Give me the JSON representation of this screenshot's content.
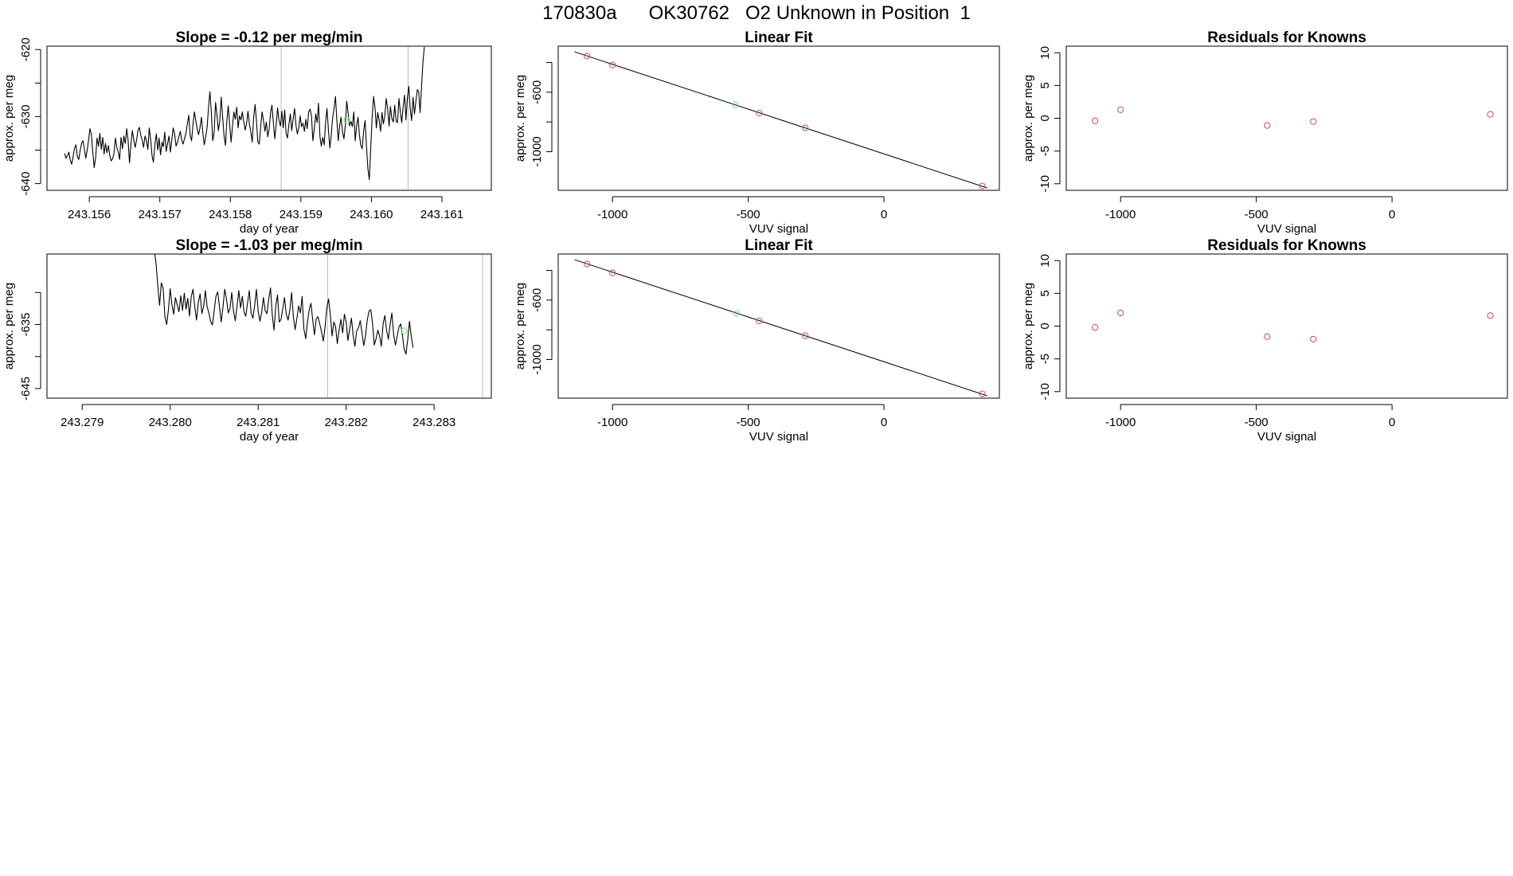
{
  "page_title": "170830a      OK30762   O2 Unknown in Position  1",
  "colors": {
    "line": "#000000",
    "known_point": "#cd5c5c",
    "unknown_point": "#7fe07f",
    "vline": "#bebebe",
    "frame": "#000000"
  },
  "chart_data": [
    {
      "id": "ts1",
      "type": "line",
      "title": "Slope =  -0.12  per meg/min",
      "xlabel": "day of year",
      "ylabel": "approx. per meg",
      "xlim": [
        243.1554,
        243.1617
      ],
      "ylim": [
        -641,
        -619.5
      ],
      "xticks": [
        243.156,
        243.157,
        243.158,
        243.159,
        243.16,
        243.161
      ],
      "xtick_labels": [
        "243.156",
        "243.157",
        "243.158",
        "243.159",
        "243.160",
        "243.161"
      ],
      "yticks": [
        -640,
        -635,
        -630,
        -625,
        -620
      ],
      "ytick_labels": [
        "-640",
        "",
        "-630",
        "",
        "-620"
      ],
      "vlines": [
        243.15872,
        243.16052
      ],
      "series": [
        {
          "name": "signal",
          "x_start": 243.15565,
          "x_step": 2e-05,
          "values": [
            -635.5,
            -636.2,
            -635.8,
            -635.3,
            -636.5,
            -637.1,
            -636.0,
            -634.8,
            -634.2,
            -635.9,
            -636.4,
            -635.1,
            -634.0,
            -633.6,
            -634.8,
            -636.2,
            -635.0,
            -633.4,
            -631.8,
            -632.7,
            -635.4,
            -637.6,
            -636.1,
            -633.2,
            -634.4,
            -632.5,
            -634.9,
            -633.1,
            -635.6,
            -634.0,
            -635.4,
            -634.3,
            -635.8,
            -636.6,
            -636.3,
            -635.5,
            -633.2,
            -634.6,
            -635.3,
            -636.4,
            -633.1,
            -634.8,
            -632.9,
            -634.0,
            -631.8,
            -633.6,
            -636.9,
            -634.2,
            -632.1,
            -633.4,
            -634.6,
            -633.5,
            -632.0,
            -631.6,
            -632.8,
            -633.5,
            -634.6,
            -632.9,
            -633.6,
            -634.9,
            -631.7,
            -633.4,
            -635.9,
            -636.8,
            -634.1,
            -632.6,
            -635.0,
            -633.2,
            -635.7,
            -633.8,
            -634.5,
            -632.3,
            -635.2,
            -634.0,
            -632.9,
            -635.3,
            -633.4,
            -631.7,
            -632.6,
            -634.4,
            -633.8,
            -633.0,
            -632.2,
            -633.5,
            -634.1,
            -633.3,
            -632.5,
            -631.1,
            -629.8,
            -632.8,
            -633.6,
            -631.2,
            -629.3,
            -630.6,
            -631.9,
            -632.7,
            -631.6,
            -630.1,
            -632.4,
            -634.2,
            -633.0,
            -631.6,
            -628.7,
            -626.3,
            -629.4,
            -633.6,
            -632.4,
            -627.9,
            -629.8,
            -632.1,
            -630.7,
            -627.1,
            -629.9,
            -632.8,
            -634.3,
            -630.6,
            -628.4,
            -631.2,
            -633.8,
            -631.5,
            -629.3,
            -630.4,
            -628.6,
            -631.7,
            -629.9,
            -630.5,
            -629.3,
            -630.8,
            -632.0,
            -631.0,
            -629.2,
            -631.1,
            -632.3,
            -633.8,
            -630.2,
            -628.2,
            -630.7,
            -633.8,
            -634.1,
            -631.4,
            -629.3,
            -630.6,
            -632.2,
            -630.8,
            -633.0,
            -631.9,
            -629.4,
            -628.3,
            -630.9,
            -633.3,
            -631.1,
            -628.7,
            -630.6,
            -631.4,
            -629.2,
            -631.7,
            -629.0,
            -632.5,
            -633.2,
            -631.2,
            -629.6,
            -632.1,
            -630.4,
            -628.8,
            -631.3,
            -632.6,
            -631.7,
            -629.9,
            -631.5,
            -631.0,
            -632.2,
            -630.4,
            -631.8,
            -629.3,
            -628.9,
            -629.8,
            -633.6,
            -631.8,
            -629.6,
            -630.9,
            -628.0,
            -633.0,
            -634.4,
            -633.1,
            -634.2,
            -630.8,
            -628.8,
            -631.9,
            -634.7,
            -632.9,
            -630.2,
            -628.8,
            -627.0,
            -630.6,
            -633.6,
            -631.3,
            -630.1,
            -632.3,
            -633.3,
            -631.3,
            -627.7,
            -629.5,
            -631.4,
            -630.7,
            -631.5,
            -629.3,
            -633.6,
            -631.4,
            -630.1,
            -632.8,
            -634.3,
            -634.8,
            -632.1,
            -630.6,
            -634.4,
            -637.8,
            -639.4,
            -634.9,
            -630.2,
            -627.0,
            -628.6,
            -631.7,
            -629.4,
            -630.6,
            -632.2,
            -629.4,
            -631.1,
            -629.8,
            -627.3,
            -628.8,
            -631.4,
            -628.5,
            -630.3,
            -630.8,
            -628.3,
            -630.7,
            -630.9,
            -627.3,
            -629.2,
            -630.9,
            -628.5,
            -626.8,
            -630.5,
            -627.2,
            -625.5,
            -628.8,
            -630.6,
            -627.1,
            -629.6,
            -627.8,
            -626.0,
            -626.3,
            -629.4,
            -625.7,
            -621.9,
            -619.6
          ]
        }
      ],
      "highlight": {
        "x": 243.15965,
        "y": -630.5
      }
    },
    {
      "id": "fit1",
      "type": "scatter",
      "title": "Linear Fit",
      "xlabel": "VUV signal",
      "ylabel": "approx. per meg",
      "xlim": [
        -1200,
        425
      ],
      "ylim": [
        -1260,
        -290
      ],
      "xticks": [
        -1000,
        -500,
        0
      ],
      "xtick_labels": [
        "-1000",
        "-500",
        "0"
      ],
      "yticks": [
        -1000,
        -800,
        -600,
        -400
      ],
      "ytick_labels": [
        "-1000",
        "",
        "-600",
        ""
      ],
      "known_points": [
        {
          "x": -1094,
          "y": -357
        },
        {
          "x": -1000,
          "y": -417
        },
        {
          "x": -460,
          "y": -740
        },
        {
          "x": -290,
          "y": -840
        },
        {
          "x": 362,
          "y": -1231
        }
      ],
      "unknown_point": {
        "x": -548,
        "y": -685
      },
      "fit_line": {
        "slope": -0.6026,
        "intercept": -1014.8,
        "x_from": -1140,
        "x_to": 380
      }
    },
    {
      "id": "res1",
      "type": "scatter",
      "title": "Residuals for Knowns",
      "xlabel": "VUV signal",
      "ylabel": "approx. per meg",
      "xlim": [
        -1200,
        425
      ],
      "ylim": [
        -11,
        11
      ],
      "xticks": [
        -1000,
        -500,
        0
      ],
      "xtick_labels": [
        "-1000",
        "-500",
        "0"
      ],
      "yticks": [
        -10,
        -5,
        0,
        5,
        10
      ],
      "ytick_labels": [
        "-10",
        "-5",
        "0",
        "5",
        "10"
      ],
      "points": [
        {
          "x": -1094,
          "y": -0.4
        },
        {
          "x": -1000,
          "y": 1.3
        },
        {
          "x": -460,
          "y": -1.1
        },
        {
          "x": -290,
          "y": -0.5
        },
        {
          "x": 362,
          "y": 0.6
        }
      ]
    },
    {
      "id": "ts2",
      "type": "line",
      "title": "Slope =  -1.03  per meg/min",
      "xlabel": "day of year",
      "ylabel": "approx. per meg",
      "xlim": [
        243.2786,
        243.28365
      ],
      "ylim": [
        -646.5,
        -624
      ],
      "xticks": [
        243.279,
        243.28,
        243.281,
        243.282,
        243.283
      ],
      "xtick_labels": [
        "243.279",
        "243.280",
        "243.281",
        "243.282",
        "243.283"
      ],
      "yticks": [
        -645,
        -640,
        -635,
        -630
      ],
      "ytick_labels": [
        "-645",
        "",
        "-635",
        ""
      ],
      "vlines": [
        243.28179,
        243.28355
      ],
      "series": [
        {
          "name": "signal",
          "x_start": 243.27982,
          "x_step": 2e-05,
          "values": [
            -623.5,
            -625.5,
            -629.0,
            -632.0,
            -628.5,
            -629.4,
            -633.8,
            -635.0,
            -632.7,
            -629.4,
            -631.9,
            -633.4,
            -630.8,
            -631.9,
            -633.0,
            -630.5,
            -632.8,
            -630.1,
            -632.6,
            -630.9,
            -633.7,
            -630.6,
            -629.5,
            -632.2,
            -634.3,
            -631.5,
            -630.2,
            -633.3,
            -632.2,
            -629.7,
            -632.2,
            -633.2,
            -634.5,
            -635.1,
            -632.9,
            -630.6,
            -629.9,
            -632.2,
            -634.6,
            -632.3,
            -629.5,
            -631.0,
            -633.2,
            -632.5,
            -630.0,
            -632.9,
            -634.4,
            -632.1,
            -629.7,
            -632.4,
            -630.6,
            -633.1,
            -633.7,
            -631.6,
            -629.7,
            -633.2,
            -634.0,
            -632.0,
            -629.5,
            -632.9,
            -634.5,
            -633.1,
            -630.8,
            -632.8,
            -633.3,
            -631.1,
            -629.3,
            -633.5,
            -635.9,
            -632.1,
            -630.4,
            -634.6,
            -634.2,
            -632.5,
            -630.8,
            -633.4,
            -634.3,
            -632.7,
            -630.0,
            -633.8,
            -635.8,
            -634.1,
            -632.1,
            -633.2,
            -630.6,
            -635.7,
            -637.2,
            -634.6,
            -632.7,
            -631.7,
            -634.3,
            -636.6,
            -634.1,
            -633.8,
            -634.9,
            -636.1,
            -637.6,
            -635.4,
            -632.4,
            -631.0,
            -633.4,
            -636.8,
            -634.6,
            -635.3,
            -638.0,
            -635.9,
            -634.2,
            -636.3,
            -633.4,
            -634.6,
            -637.5,
            -635.7,
            -634.0,
            -636.7,
            -638.4,
            -636.0,
            -635.5,
            -634.4,
            -636.3,
            -638.3,
            -636.8,
            -634.3,
            -632.9,
            -632.7,
            -634.8,
            -638.2,
            -637.2,
            -635.9,
            -636.8,
            -638.4,
            -634.9,
            -633.6,
            -635.9,
            -637.3,
            -635.0,
            -633.2,
            -636.7,
            -638.2,
            -636.8,
            -635.4,
            -634.9,
            -636.7,
            -638.9,
            -639.6,
            -637.4,
            -634.5,
            -636.8,
            -638.6
          ]
        }
      ],
      "highlight": {
        "x": 243.28266,
        "y": -636.0
      }
    },
    {
      "id": "fit2",
      "type": "scatter",
      "title": "Linear Fit",
      "xlabel": "VUV signal",
      "ylabel": "approx. per meg",
      "xlim": [
        -1200,
        425
      ],
      "ylim": [
        -1260,
        -290
      ],
      "xticks": [
        -1000,
        -500,
        0
      ],
      "xtick_labels": [
        "-1000",
        "-500",
        "0"
      ],
      "yticks": [
        -1000,
        -800,
        -600,
        -400
      ],
      "ytick_labels": [
        "-1000",
        "",
        "-600",
        ""
      ],
      "known_points": [
        {
          "x": -1094,
          "y": -357
        },
        {
          "x": -1000,
          "y": -417
        },
        {
          "x": -460,
          "y": -740
        },
        {
          "x": -290,
          "y": -840
        },
        {
          "x": 362,
          "y": -1231
        }
      ],
      "unknown_point": {
        "x": -543,
        "y": -690
      },
      "fit_line": {
        "slope": -0.6026,
        "intercept": -1014.8,
        "x_from": -1140,
        "x_to": 380
      }
    },
    {
      "id": "res2",
      "type": "scatter",
      "title": "Residuals for Knowns",
      "xlabel": "VUV signal",
      "ylabel": "approx. per meg",
      "xlim": [
        -1200,
        425
      ],
      "ylim": [
        -11,
        11
      ],
      "xticks": [
        -1000,
        -500,
        0
      ],
      "xtick_labels": [
        "-1000",
        "-500",
        "0"
      ],
      "yticks": [
        -10,
        -5,
        0,
        5,
        10
      ],
      "ytick_labels": [
        "-10",
        "-5",
        "0",
        "5",
        "10"
      ],
      "points": [
        {
          "x": -1094,
          "y": -0.2
        },
        {
          "x": -1000,
          "y": 2.0
        },
        {
          "x": -460,
          "y": -1.6
        },
        {
          "x": -290,
          "y": -2.0
        },
        {
          "x": 362,
          "y": 1.6
        }
      ]
    }
  ]
}
